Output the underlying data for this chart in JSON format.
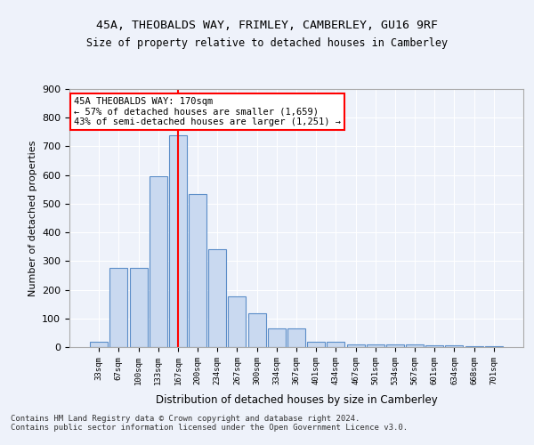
{
  "title1": "45A, THEOBALDS WAY, FRIMLEY, CAMBERLEY, GU16 9RF",
  "title2": "Size of property relative to detached houses in Camberley",
  "xlabel": "Distribution of detached houses by size in Camberley",
  "ylabel": "Number of detached properties",
  "categories": [
    "33sqm",
    "67sqm",
    "100sqm",
    "133sqm",
    "167sqm",
    "200sqm",
    "234sqm",
    "267sqm",
    "300sqm",
    "334sqm",
    "367sqm",
    "401sqm",
    "434sqm",
    "467sqm",
    "501sqm",
    "534sqm",
    "567sqm",
    "601sqm",
    "634sqm",
    "668sqm",
    "701sqm"
  ],
  "values": [
    20,
    275,
    275,
    595,
    740,
    535,
    340,
    178,
    118,
    65,
    65,
    20,
    20,
    10,
    10,
    8,
    8,
    5,
    5,
    3,
    3
  ],
  "bar_color": "#c9d9f0",
  "bar_edge_color": "#5b8dc8",
  "red_line_x": 4.5,
  "annotation_text": "45A THEOBALDS WAY: 170sqm\n← 57% of detached houses are smaller (1,659)\n43% of semi-detached houses are larger (1,251) →",
  "ylim": [
    0,
    900
  ],
  "yticks": [
    0,
    100,
    200,
    300,
    400,
    500,
    600,
    700,
    800,
    900
  ],
  "footer": "Contains HM Land Registry data © Crown copyright and database right 2024.\nContains public sector information licensed under the Open Government Licence v3.0.",
  "bg_color": "#eef2fa",
  "plot_bg_color": "#eef2fa"
}
